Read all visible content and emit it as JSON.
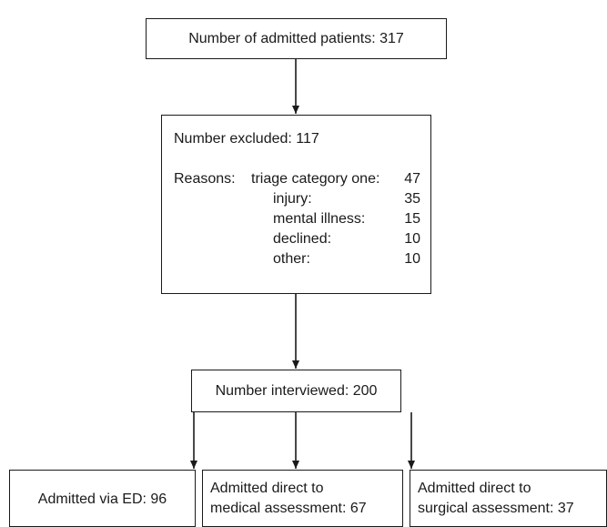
{
  "flowchart": {
    "admitted": {
      "text": "Number of admitted patients: 317"
    },
    "excluded": {
      "title": "Number excluded: 117",
      "reasons_label": "Reasons:",
      "reasons": [
        {
          "label": "triage category one:",
          "count": "47"
        },
        {
          "label": "injury:",
          "count": "35"
        },
        {
          "label": "mental illness:",
          "count": "15"
        },
        {
          "label": "declined:",
          "count": "10"
        },
        {
          "label": "other:",
          "count": "10"
        }
      ]
    },
    "interviewed": {
      "text": "Number interviewed: 200"
    },
    "branches": {
      "ed": {
        "text": "Admitted via ED: 96"
      },
      "medical": {
        "line1": "Admitted direct to",
        "line2": "medical assessment: 67"
      },
      "surgical": {
        "line1": "Admitted direct to",
        "line2": "surgical assessment: 37"
      }
    }
  }
}
